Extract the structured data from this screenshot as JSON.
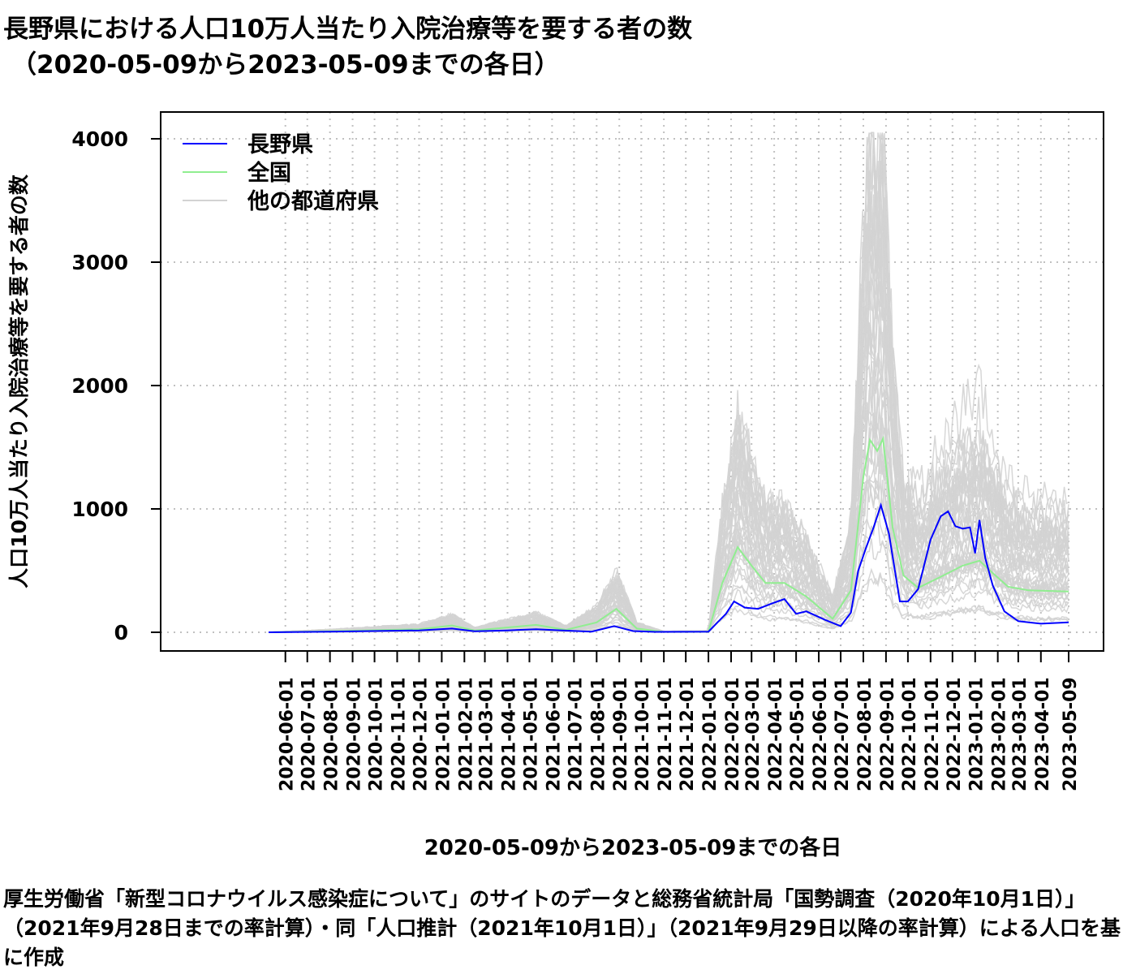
{
  "title_line1": "長野県における人口10万人当たり入院治療等を要する者の数",
  "title_line2": "（2020-05-09から2023-05-09までの各日）",
  "caption": "厚生労働省「新型コロナウイルス感染症について」のサイトのデータと総務省統計局「国勢調査（2020年10月1日）」（2021年9月28日までの率計算）・同「人口推計（2021年10月1日）」（2021年9月29日以降の率計算）による人口を基に作成",
  "colors": {
    "nagano": "#0000ff",
    "national": "#90ee90",
    "others": "#d3d3d3",
    "grid": "#c0c0c0"
  },
  "chart_data": {
    "type": "line",
    "xlabel": "2020-05-09から2023-05-09までの各日",
    "ylabel": "人口10万人当たり入院治療等を要する者の数",
    "x_range": [
      "2020-05-09",
      "2023-05-09"
    ],
    "ylim": [
      0,
      4000
    ],
    "y_ticks": [
      0,
      1000,
      2000,
      3000,
      4000
    ],
    "x_tick_labels": [
      "2020-06-01",
      "2020-07-01",
      "2020-08-01",
      "2020-09-01",
      "2020-10-01",
      "2020-11-01",
      "2020-12-01",
      "2021-01-01",
      "2021-02-01",
      "2021-03-01",
      "2021-04-01",
      "2021-05-01",
      "2021-06-01",
      "2021-07-01",
      "2021-08-01",
      "2021-09-01",
      "2021-10-01",
      "2021-11-01",
      "2021-12-01",
      "2022-01-01",
      "2022-02-01",
      "2022-03-01",
      "2022-04-01",
      "2022-05-01",
      "2022-06-01",
      "2022-07-01",
      "2022-08-01",
      "2022-09-01",
      "2022-10-01",
      "2022-11-01",
      "2022-12-01",
      "2023-01-01",
      "2023-02-01",
      "2023-03-01",
      "2023-04-01",
      "2023-05-09"
    ],
    "grid": true,
    "legend_position": "top-left",
    "series": [
      {
        "name": "長野県",
        "color": "#0000ff",
        "points": [
          [
            "2020-05-09",
            0
          ],
          [
            "2020-08-01",
            5
          ],
          [
            "2020-12-01",
            15
          ],
          [
            "2021-01-15",
            30
          ],
          [
            "2021-02-15",
            8
          ],
          [
            "2021-04-01",
            15
          ],
          [
            "2021-05-10",
            25
          ],
          [
            "2021-06-15",
            15
          ],
          [
            "2021-07-25",
            5
          ],
          [
            "2021-08-25",
            50
          ],
          [
            "2021-09-20",
            10
          ],
          [
            "2021-10-20",
            3
          ],
          [
            "2022-01-01",
            5
          ],
          [
            "2022-01-25",
            150
          ],
          [
            "2022-02-05",
            250
          ],
          [
            "2022-02-20",
            200
          ],
          [
            "2022-03-10",
            190
          ],
          [
            "2022-04-01",
            240
          ],
          [
            "2022-04-15",
            270
          ],
          [
            "2022-05-01",
            150
          ],
          [
            "2022-05-15",
            170
          ],
          [
            "2022-06-10",
            100
          ],
          [
            "2022-07-01",
            50
          ],
          [
            "2022-07-15",
            160
          ],
          [
            "2022-07-25",
            500
          ],
          [
            "2022-08-05",
            690
          ],
          [
            "2022-08-15",
            850
          ],
          [
            "2022-08-25",
            1030
          ],
          [
            "2022-09-05",
            800
          ],
          [
            "2022-09-20",
            250
          ],
          [
            "2022-10-01",
            250
          ],
          [
            "2022-10-15",
            350
          ],
          [
            "2022-11-01",
            750
          ],
          [
            "2022-11-15",
            940
          ],
          [
            "2022-11-25",
            980
          ],
          [
            "2022-12-05",
            860
          ],
          [
            "2022-12-15",
            840
          ],
          [
            "2022-12-25",
            850
          ],
          [
            "2023-01-01",
            640
          ],
          [
            "2023-01-07",
            910
          ],
          [
            "2023-01-15",
            600
          ],
          [
            "2023-01-25",
            380
          ],
          [
            "2023-02-10",
            170
          ],
          [
            "2023-03-01",
            90
          ],
          [
            "2023-04-01",
            70
          ],
          [
            "2023-05-09",
            80
          ]
        ]
      },
      {
        "name": "全国",
        "color": "#90ee90",
        "points": [
          [
            "2020-05-09",
            0
          ],
          [
            "2020-08-10",
            10
          ],
          [
            "2020-12-01",
            25
          ],
          [
            "2021-01-15",
            55
          ],
          [
            "2021-02-15",
            15
          ],
          [
            "2021-05-10",
            60
          ],
          [
            "2021-06-20",
            20
          ],
          [
            "2021-08-01",
            80
          ],
          [
            "2021-08-28",
            190
          ],
          [
            "2021-09-25",
            30
          ],
          [
            "2021-11-01",
            3
          ],
          [
            "2022-01-01",
            5
          ],
          [
            "2022-01-20",
            400
          ],
          [
            "2022-02-10",
            690
          ],
          [
            "2022-03-01",
            540
          ],
          [
            "2022-03-20",
            400
          ],
          [
            "2022-04-15",
            400
          ],
          [
            "2022-05-15",
            290
          ],
          [
            "2022-06-20",
            110
          ],
          [
            "2022-07-15",
            340
          ],
          [
            "2022-08-01",
            1260
          ],
          [
            "2022-08-10",
            1560
          ],
          [
            "2022-08-20",
            1470
          ],
          [
            "2022-08-28",
            1570
          ],
          [
            "2022-09-10",
            850
          ],
          [
            "2022-09-25",
            460
          ],
          [
            "2022-10-15",
            360
          ],
          [
            "2022-11-15",
            450
          ],
          [
            "2022-12-15",
            540
          ],
          [
            "2023-01-07",
            580
          ],
          [
            "2023-01-25",
            480
          ],
          [
            "2023-02-15",
            370
          ],
          [
            "2023-03-15",
            340
          ],
          [
            "2023-05-09",
            330
          ]
        ]
      }
    ],
    "background_series_name": "他の都道府県"
  },
  "legend": [
    {
      "label": "長野県",
      "color": "#0000ff"
    },
    {
      "label": "全国",
      "color": "#90ee90"
    },
    {
      "label": "他の都道府県",
      "color": "#d3d3d3"
    }
  ]
}
